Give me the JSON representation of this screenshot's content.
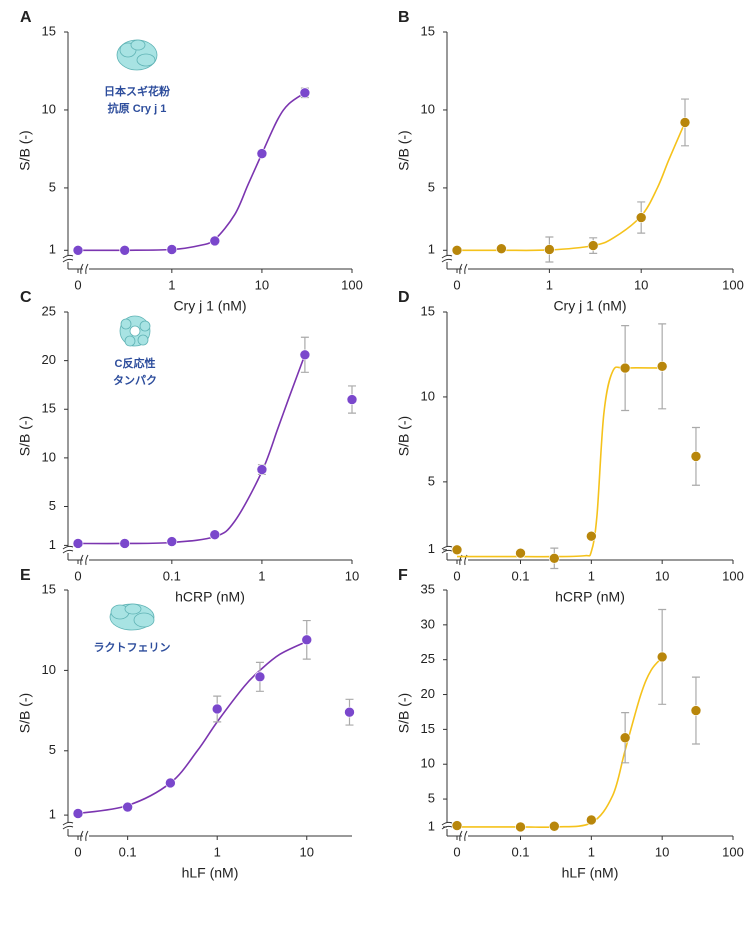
{
  "chart_data": [
    {
      "type": "scatter",
      "panel": "A",
      "annotation": [
        "日本スギ花粉",
        "抗原 Cry j 1"
      ],
      "x_label": "Cry j 1 (nM)",
      "y_label": "S/B (-)",
      "x_log": true,
      "axis_break": true,
      "xlim": [
        0.13,
        100
      ],
      "ylim": [
        -0.2,
        15
      ],
      "xticks": [
        0,
        1,
        10,
        100
      ],
      "yticks": [
        1,
        5,
        10,
        15
      ],
      "series": [
        {
          "type": "line",
          "color": "#7b35b0",
          "x": [
            0,
            0.3,
            1,
            2,
            3,
            5,
            7,
            10,
            15,
            20,
            30
          ],
          "values": [
            1.0,
            1.0,
            1.05,
            1.3,
            1.7,
            3.3,
            5.2,
            7.2,
            9.4,
            10.4,
            11.1
          ]
        },
        {
          "type": "scatter",
          "color": "#7a47cc",
          "x": [
            0,
            0.3,
            1,
            3,
            10,
            30
          ],
          "values": [
            1.0,
            1.0,
            1.05,
            1.6,
            7.2,
            11.1
          ],
          "errors": [
            null,
            null,
            null,
            null,
            0.2,
            0.3
          ]
        }
      ]
    },
    {
      "type": "scatter",
      "panel": "B",
      "x_label": "Cry j 1 (nM)",
      "y_label": "S/B (-)",
      "x_log": true,
      "axis_break": true,
      "xlim": [
        0.14,
        100
      ],
      "ylim": [
        -0.2,
        15
      ],
      "xticks": [
        0,
        1,
        10,
        100
      ],
      "yticks": [
        1,
        5,
        10,
        15
      ],
      "series": [
        {
          "type": "line",
          "color": "#f5c21b",
          "x": [
            0,
            0.3,
            1,
            3,
            5,
            10,
            15,
            20,
            30
          ],
          "values": [
            1.0,
            1.0,
            1.02,
            1.3,
            1.8,
            3.2,
            5.0,
            6.8,
            9.2
          ]
        },
        {
          "type": "scatter",
          "color": "#b8860b",
          "x": [
            0,
            0.3,
            1,
            3,
            10,
            30
          ],
          "values": [
            1.0,
            1.1,
            1.05,
            1.3,
            3.1,
            9.2
          ],
          "errors": [
            null,
            null,
            0.8,
            0.5,
            1.0,
            1.5
          ]
        }
      ]
    },
    {
      "type": "scatter",
      "panel": "C",
      "annotation": [
        "C反応性",
        "タンパク"
      ],
      "x_label": "hCRP (nM)",
      "y_label": "S/B (-)",
      "x_log": true,
      "axis_break": true,
      "xlim": [
        0.013,
        10
      ],
      "ylim": [
        -0.5,
        25
      ],
      "xticks": [
        0,
        0.1,
        1,
        10
      ],
      "yticks": [
        1,
        5,
        10,
        15,
        20,
        25
      ],
      "series": [
        {
          "type": "line",
          "color": "#7b35b0",
          "x": [
            0,
            0.03,
            0.1,
            0.3,
            0.5,
            1,
            1.5,
            2,
            3
          ],
          "values": [
            1.2,
            1.2,
            1.3,
            1.9,
            3.5,
            8.6,
            13,
            16.2,
            20.6
          ]
        },
        {
          "type": "scatter",
          "color": "#7a47cc",
          "x": [
            0,
            0.03,
            0.1,
            0.3,
            1,
            3,
            10
          ],
          "values": [
            1.2,
            1.2,
            1.4,
            2.1,
            8.8,
            20.6,
            16.0
          ],
          "errors": [
            null,
            null,
            null,
            null,
            0.5,
            1.8,
            1.4
          ]
        }
      ]
    },
    {
      "type": "scatter",
      "panel": "D",
      "x_label": "hCRP (nM)",
      "y_label": "S/B (-)",
      "x_log": true,
      "axis_break": true,
      "xlim": [
        0.02,
        100
      ],
      "ylim": [
        0.4,
        15
      ],
      "xticks": [
        0,
        0.1,
        1,
        10,
        100
      ],
      "yticks": [
        1,
        5,
        10,
        15
      ],
      "series": [
        {
          "type": "line",
          "color": "#f5c21b",
          "x": [
            0,
            0.1,
            0.3,
            0.8,
            1.0,
            1.2,
            1.5,
            2,
            3,
            10
          ],
          "values": [
            0.6,
            0.6,
            0.6,
            0.65,
            0.9,
            3,
            9,
            11.5,
            11.7,
            11.7
          ]
        },
        {
          "type": "scatter",
          "color": "#b8860b",
          "x": [
            0,
            0.1,
            0.3,
            1,
            3,
            10,
            30
          ],
          "values": [
            1.0,
            0.8,
            0.5,
            1.8,
            11.7,
            11.8,
            6.5
          ],
          "errors": [
            null,
            null,
            0.6,
            null,
            2.5,
            2.5,
            1.7
          ]
        }
      ]
    },
    {
      "type": "scatter",
      "panel": "E",
      "annotation": [
        "ラクトフェリン"
      ],
      "x_label": "hLF (nM)",
      "y_label": "S/B (-)",
      "x_log": true,
      "axis_break": true,
      "xlim": [
        0.04,
        32
      ],
      "ylim": [
        -0.3,
        15
      ],
      "xticks": [
        0,
        0.1,
        1,
        10
      ],
      "yticks": [
        1,
        5,
        10,
        15
      ],
      "series": [
        {
          "type": "line",
          "color": "#7b35b0",
          "x": [
            0,
            0.1,
            0.3,
            0.6,
            1,
            2,
            3,
            5,
            10
          ],
          "values": [
            1.1,
            1.6,
            3.0,
            5.0,
            6.8,
            9.0,
            10.0,
            11.0,
            11.8
          ]
        },
        {
          "type": "scatter",
          "color": "#7a47cc",
          "x": [
            0,
            0.1,
            0.3,
            1,
            3,
            10,
            30
          ],
          "values": [
            1.1,
            1.5,
            3.0,
            7.6,
            9.6,
            11.9,
            7.4
          ],
          "errors": [
            null,
            null,
            null,
            0.8,
            0.9,
            1.2,
            0.8
          ]
        }
      ]
    },
    {
      "type": "scatter",
      "panel": "F",
      "x_label": "hLF (nM)",
      "y_label": "S/B (-)",
      "x_log": true,
      "axis_break": true,
      "xlim": [
        0.02,
        100
      ],
      "ylim": [
        -0.3,
        35
      ],
      "xticks": [
        0,
        0.1,
        1,
        10,
        100
      ],
      "yticks": [
        1,
        5,
        10,
        15,
        20,
        25,
        30,
        35
      ],
      "series": [
        {
          "type": "line",
          "color": "#f5c21b",
          "x": [
            0,
            0.1,
            0.3,
            1,
            2,
            3,
            5,
            7,
            10
          ],
          "values": [
            1.0,
            1.0,
            1.0,
            1.6,
            5.5,
            12,
            20,
            23.5,
            25.3
          ]
        },
        {
          "type": "scatter",
          "color": "#b8860b",
          "x": [
            0,
            0.1,
            0.3,
            1,
            3,
            10,
            30
          ],
          "values": [
            1.2,
            1.0,
            1.1,
            2.0,
            13.8,
            25.4,
            17.7
          ],
          "errors": [
            null,
            null,
            null,
            null,
            3.6,
            6.8,
            4.8
          ]
        }
      ]
    }
  ]
}
